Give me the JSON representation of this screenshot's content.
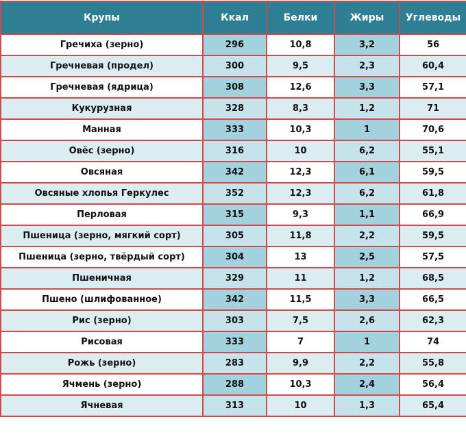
{
  "table": {
    "header": [
      "Крупы",
      "Ккал",
      "Белки",
      "Жиры",
      "Углеводы"
    ],
    "rows": [
      [
        "Гречиха (зерно)",
        "296",
        "10,8",
        "3,2",
        "56"
      ],
      [
        "Гречневая  (продел)",
        "300",
        "9,5",
        "2,3",
        "60,4"
      ],
      [
        "Гречневая  (ядрица)",
        "308",
        "12,6",
        "3,3",
        "57,1"
      ],
      [
        "Кукурузная",
        "328",
        "8,3",
        "1,2",
        "71"
      ],
      [
        "Манная",
        "333",
        "10,3",
        "1",
        "70,6"
      ],
      [
        "Овёс (зерно)",
        "316",
        "10",
        "6,2",
        "55,1"
      ],
      [
        "Овсяная",
        "342",
        "12,3",
        "6,1",
        "59,5"
      ],
      [
        "Овсяные хлопья Геркулес",
        "352",
        "12,3",
        "6,2",
        "61,8"
      ],
      [
        "Перловая",
        "315",
        "9,3",
        "1,1",
        "66,9"
      ],
      [
        "Пшеница (зерно, мягкий сорт)",
        "305",
        "11,8",
        "2,2",
        "59,5"
      ],
      [
        "Пшеница (зерно, твёрдый сорт)",
        "304",
        "13",
        "2,5",
        "57,5"
      ],
      [
        "Пшеничная",
        "329",
        "11",
        "1,2",
        "68,5"
      ],
      [
        "Пшено (шлифованное)",
        "342",
        "11,5",
        "3,3",
        "66,5"
      ],
      [
        "Рис (зерно)",
        "303",
        "7,5",
        "2,6",
        "62,3"
      ],
      [
        "Рисовая",
        "333",
        "7",
        "1",
        "74"
      ],
      [
        "Рожь (зерно)",
        "283",
        "9,9",
        "2,2",
        "55,8"
      ],
      [
        "Ячмень (зерно)",
        "288",
        "10,3",
        "2,4",
        "56,4"
      ],
      [
        "Ячневая",
        "313",
        "10",
        "1,3",
        "65,4"
      ]
    ]
  }
}
